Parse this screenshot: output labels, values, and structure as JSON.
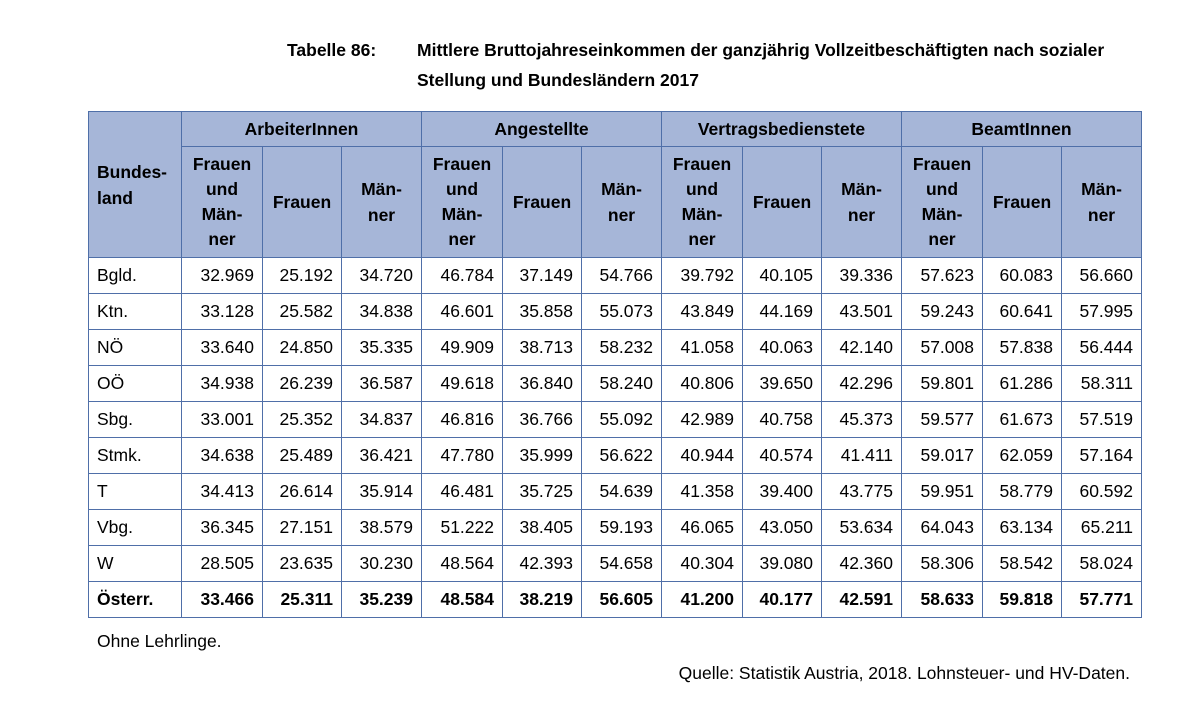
{
  "caption": {
    "label": "Tabelle 86:",
    "text": "Mittlere Bruttojahreseinkommen der ganzjährig Vollzeitbeschäftigten nach sozialer Stellung und Bundesländern 2017"
  },
  "table": {
    "row_header": "Bundes-\nland",
    "groups": [
      "ArbeiterInnen",
      "Angestellte",
      "Vertragsbedienstete",
      "BeamtInnen"
    ],
    "subheaders": [
      "Frauen\nund\nMän-\nner",
      "Frauen",
      "Män-\nner"
    ],
    "rows": [
      {
        "label": "Bgld.",
        "values": [
          "32.969",
          "25.192",
          "34.720",
          "46.784",
          "37.149",
          "54.766",
          "39.792",
          "40.105",
          "39.336",
          "57.623",
          "60.083",
          "56.660"
        ]
      },
      {
        "label": "Ktn.",
        "values": [
          "33.128",
          "25.582",
          "34.838",
          "46.601",
          "35.858",
          "55.073",
          "43.849",
          "44.169",
          "43.501",
          "59.243",
          "60.641",
          "57.995"
        ]
      },
      {
        "label": "NÖ",
        "values": [
          "33.640",
          "24.850",
          "35.335",
          "49.909",
          "38.713",
          "58.232",
          "41.058",
          "40.063",
          "42.140",
          "57.008",
          "57.838",
          "56.444"
        ]
      },
      {
        "label": "OÖ",
        "values": [
          "34.938",
          "26.239",
          "36.587",
          "49.618",
          "36.840",
          "58.240",
          "40.806",
          "39.650",
          "42.296",
          "59.801",
          "61.286",
          "58.311"
        ]
      },
      {
        "label": "Sbg.",
        "values": [
          "33.001",
          "25.352",
          "34.837",
          "46.816",
          "36.766",
          "55.092",
          "42.989",
          "40.758",
          "45.373",
          "59.577",
          "61.673",
          "57.519"
        ]
      },
      {
        "label": "Stmk.",
        "values": [
          "34.638",
          "25.489",
          "36.421",
          "47.780",
          "35.999",
          "56.622",
          "40.944",
          "40.574",
          "41.411",
          "59.017",
          "62.059",
          "57.164"
        ]
      },
      {
        "label": "T",
        "values": [
          "34.413",
          "26.614",
          "35.914",
          "46.481",
          "35.725",
          "54.639",
          "41.358",
          "39.400",
          "43.775",
          "59.951",
          "58.779",
          "60.592"
        ]
      },
      {
        "label": "Vbg.",
        "values": [
          "36.345",
          "27.151",
          "38.579",
          "51.222",
          "38.405",
          "59.193",
          "46.065",
          "43.050",
          "53.634",
          "64.043",
          "63.134",
          "65.211"
        ]
      },
      {
        "label": "W",
        "values": [
          "28.505",
          "23.635",
          "30.230",
          "48.564",
          "42.393",
          "54.658",
          "40.304",
          "39.080",
          "42.360",
          "58.306",
          "58.542",
          "58.024"
        ]
      },
      {
        "label": "Österr.",
        "values": [
          "33.466",
          "25.311",
          "35.239",
          "48.584",
          "38.219",
          "56.605",
          "41.200",
          "40.177",
          "42.591",
          "58.633",
          "59.818",
          "57.771"
        ],
        "total": true
      }
    ]
  },
  "note": "Ohne Lehrlinge.",
  "source": "Quelle: Statistik Austria, 2018. Lohnsteuer- und HV-Daten.",
  "colors": {
    "header_bg": "#a6b6d8",
    "border": "#4f6fa8"
  }
}
